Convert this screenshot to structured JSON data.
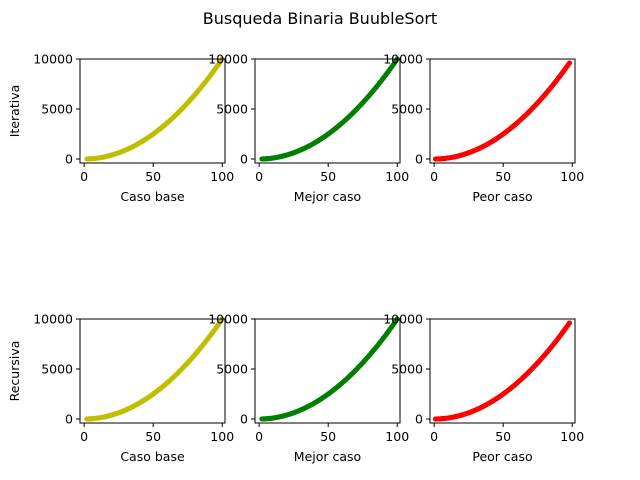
{
  "figure": {
    "title": "Busqueda Binaria BuubleSort"
  },
  "chart_data": [
    {
      "type": "scatter",
      "row_label": "Iterativa",
      "xlabel": "Caso base",
      "color": "#bfbf00",
      "xlim": [
        -3,
        102
      ],
      "ylim": [
        -400,
        10000
      ],
      "xticks": [
        0,
        50,
        100
      ],
      "yticks": [
        0,
        5000,
        10000
      ],
      "x_range": [
        2,
        100
      ],
      "y_formula": "y = x^2",
      "series": [
        {
          "x_start": 2,
          "x_end": 100,
          "x_step": 1
        }
      ]
    },
    {
      "type": "scatter",
      "row_label": "",
      "xlabel": "Mejor caso",
      "color": "#008000",
      "xlim": [
        -3,
        102
      ],
      "ylim": [
        -400,
        10000
      ],
      "xticks": [
        0,
        50,
        100
      ],
      "yticks": [
        0,
        5000,
        10000
      ],
      "series": [
        {
          "x_start": 2,
          "x_end": 100,
          "x_step": 1
        }
      ]
    },
    {
      "type": "scatter",
      "row_label": "",
      "xlabel": "Peor caso",
      "color": "#ff0000",
      "xlim": [
        -3,
        102
      ],
      "ylim": [
        -400,
        10000
      ],
      "xticks": [
        0,
        50,
        100
      ],
      "yticks": [
        0,
        5000,
        10000
      ],
      "series": [
        {
          "x_start": 1,
          "x_end": 98,
          "x_step": 1
        }
      ]
    },
    {
      "type": "scatter",
      "row_label": "Recursiva",
      "xlabel": "Caso base",
      "color": "#bfbf00",
      "xlim": [
        -3,
        102
      ],
      "ylim": [
        -400,
        10000
      ],
      "xticks": [
        0,
        50,
        100
      ],
      "yticks": [
        0,
        5000,
        10000
      ],
      "series": [
        {
          "x_start": 2,
          "x_end": 100,
          "x_step": 1
        }
      ]
    },
    {
      "type": "scatter",
      "row_label": "",
      "xlabel": "Mejor caso",
      "color": "#008000",
      "xlim": [
        -3,
        102
      ],
      "ylim": [
        -400,
        10000
      ],
      "xticks": [
        0,
        50,
        100
      ],
      "yticks": [
        0,
        5000,
        10000
      ],
      "series": [
        {
          "x_start": 2,
          "x_end": 100,
          "x_step": 1
        }
      ]
    },
    {
      "type": "scatter",
      "row_label": "",
      "xlabel": "Peor caso",
      "color": "#ff0000",
      "xlim": [
        -3,
        102
      ],
      "ylim": [
        -400,
        10000
      ],
      "xticks": [
        0,
        50,
        100
      ],
      "yticks": [
        0,
        5000,
        10000
      ],
      "series": [
        {
          "x_start": 1,
          "x_end": 98,
          "x_step": 1
        }
      ]
    }
  ]
}
